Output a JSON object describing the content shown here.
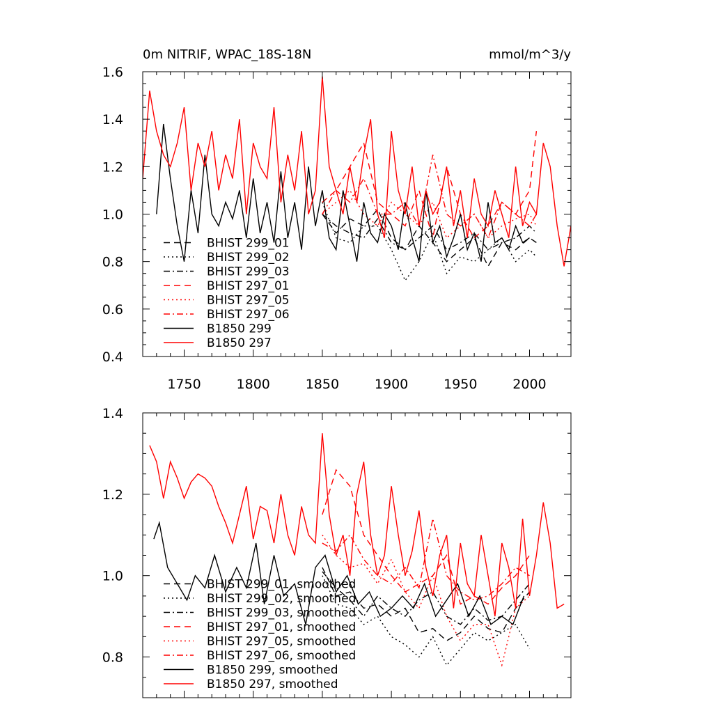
{
  "chart_data": [
    {
      "type": "line",
      "title": "0m NITRIF, WPAC_18S-18N",
      "units": "mmol/m^3/y",
      "xlim": [
        1720,
        2030
      ],
      "ylim": [
        0.4,
        1.6
      ],
      "xticks": [
        1750,
        1800,
        1850,
        1900,
        1950,
        2000
      ],
      "yticks": [
        0.4,
        0.6,
        0.8,
        1.0,
        1.2,
        1.4,
        1.6
      ],
      "ytick_labels": [
        "0.4",
        "0.6",
        "0.8",
        "1.0",
        "1.2",
        "1.4",
        "1.6"
      ],
      "legend_position": "bottom-left",
      "series": [
        {
          "name": "BHIST 299_01",
          "color": "#000000",
          "dash": "dash",
          "x": [
            1850,
            1860,
            1870,
            1880,
            1890,
            1900,
            1910,
            1920,
            1930,
            1940,
            1950,
            1960,
            1970,
            1980,
            1990,
            2000,
            2005
          ],
          "y": [
            1.0,
            0.92,
            0.98,
            0.95,
            1.02,
            0.9,
            0.85,
            0.95,
            0.88,
            0.8,
            0.85,
            0.9,
            0.78,
            0.88,
            0.85,
            0.9,
            0.88
          ]
        },
        {
          "name": "BHIST 299_02",
          "color": "#000000",
          "dash": "dot",
          "x": [
            1850,
            1860,
            1870,
            1880,
            1890,
            1900,
            1910,
            1920,
            1930,
            1940,
            1950,
            1960,
            1970,
            1980,
            1990,
            2000,
            2005
          ],
          "y": [
            1.05,
            0.9,
            0.88,
            0.95,
            0.95,
            0.85,
            0.72,
            0.8,
            0.92,
            0.75,
            0.82,
            0.8,
            0.85,
            0.9,
            0.8,
            0.85,
            0.82
          ]
        },
        {
          "name": "BHIST 299_03",
          "color": "#000000",
          "dash": "dashdot",
          "x": [
            1850,
            1860,
            1870,
            1880,
            1890,
            1900,
            1910,
            1920,
            1930,
            1940,
            1950,
            1960,
            1970,
            1980,
            1990,
            2000,
            2005
          ],
          "y": [
            1.0,
            0.95,
            0.92,
            0.9,
            0.98,
            0.88,
            0.85,
            0.9,
            0.95,
            0.85,
            0.88,
            0.92,
            0.85,
            0.88,
            0.9,
            0.95,
            0.92
          ]
        },
        {
          "name": "BHIST 297_01",
          "color": "#ff0000",
          "dash": "dash",
          "x": [
            1850,
            1860,
            1870,
            1880,
            1890,
            1900,
            1910,
            1920,
            1930,
            1940,
            1950,
            1960,
            1970,
            1980,
            1990,
            2000,
            2005
          ],
          "y": [
            1.05,
            1.1,
            1.2,
            1.3,
            1.05,
            1.0,
            0.95,
            1.1,
            0.9,
            1.2,
            1.0,
            0.9,
            0.95,
            1.05,
            1.0,
            1.1,
            1.35
          ]
        },
        {
          "name": "BHIST 297_05",
          "color": "#ff0000",
          "dash": "dot",
          "x": [
            1850,
            1860,
            1870,
            1880,
            1890,
            1900,
            1910,
            1920,
            1930,
            1940,
            1950,
            1960,
            1970,
            1980,
            1990,
            2000,
            2005
          ],
          "y": [
            1.0,
            1.05,
            1.1,
            1.0,
            0.95,
            1.05,
            1.0,
            0.95,
            1.05,
            0.9,
            0.95,
            1.0,
            0.9,
            0.95,
            0.98,
            1.0,
            0.95
          ]
        },
        {
          "name": "BHIST 297_06",
          "color": "#ff0000",
          "dash": "dashdot",
          "x": [
            1850,
            1860,
            1870,
            1880,
            1890,
            1900,
            1910,
            1920,
            1930,
            1940,
            1950,
            1960,
            1970,
            1980,
            1990,
            2000,
            2005
          ],
          "y": [
            1.0,
            1.1,
            1.05,
            1.15,
            1.0,
            1.0,
            1.05,
            0.95,
            1.25,
            1.0,
            0.95,
            1.0,
            0.9,
            1.05,
            1.0,
            0.95,
            1.0
          ]
        },
        {
          "name": "B1850 299",
          "color": "#000000",
          "dash": "solid",
          "x": [
            1730,
            1735,
            1740,
            1745,
            1750,
            1755,
            1760,
            1765,
            1770,
            1775,
            1780,
            1785,
            1790,
            1795,
            1800,
            1805,
            1810,
            1815,
            1820,
            1825,
            1830,
            1835,
            1840,
            1845,
            1850,
            1855,
            1860,
            1865,
            1870,
            1875,
            1880,
            1885,
            1890,
            1895,
            1900,
            1905,
            1910,
            1915,
            1920,
            1925,
            1930,
            1935,
            1940,
            1945,
            1950,
            1955,
            1960,
            1965,
            1970,
            1975,
            1980,
            1985,
            1990,
            1995,
            2000
          ],
          "y": [
            1.0,
            1.38,
            1.15,
            0.95,
            0.8,
            1.1,
            0.92,
            1.25,
            1.0,
            0.95,
            1.05,
            0.98,
            1.1,
            0.9,
            1.15,
            0.92,
            1.05,
            0.88,
            1.18,
            0.9,
            1.05,
            0.85,
            1.2,
            0.95,
            1.1,
            0.9,
            0.85,
            1.1,
            0.95,
            0.8,
            1.05,
            0.92,
            0.88,
            1.0,
            0.95,
            0.85,
            1.05,
            0.9,
            0.8,
            1.1,
            0.88,
            0.95,
            0.82,
            0.9,
            1.0,
            0.85,
            0.92,
            0.8,
            1.05,
            0.88,
            0.9,
            0.85,
            0.95,
            0.88,
            0.9
          ]
        },
        {
          "name": "B1850 297",
          "color": "#ff0000",
          "dash": "solid",
          "x": [
            1720,
            1725,
            1730,
            1735,
            1740,
            1745,
            1750,
            1755,
            1760,
            1765,
            1770,
            1775,
            1780,
            1785,
            1790,
            1795,
            1800,
            1805,
            1810,
            1815,
            1820,
            1825,
            1830,
            1835,
            1840,
            1845,
            1850,
            1855,
            1860,
            1865,
            1870,
            1875,
            1880,
            1885,
            1890,
            1895,
            1900,
            1905,
            1910,
            1915,
            1920,
            1925,
            1930,
            1935,
            1940,
            1945,
            1950,
            1955,
            1960,
            1965,
            1970,
            1975,
            1980,
            1985,
            1990,
            1995,
            2000,
            2005,
            2010,
            2015,
            2020,
            2025,
            2030
          ],
          "y": [
            1.15,
            1.52,
            1.35,
            1.25,
            1.2,
            1.3,
            1.45,
            1.1,
            1.3,
            1.2,
            1.35,
            1.1,
            1.25,
            1.15,
            1.4,
            1.0,
            1.3,
            1.2,
            1.15,
            1.45,
            1.05,
            1.25,
            1.1,
            1.35,
            1.0,
            1.1,
            1.58,
            1.2,
            1.1,
            1.0,
            1.2,
            1.05,
            1.25,
            1.4,
            1.0,
            0.9,
            1.35,
            1.1,
            1.0,
            1.2,
            0.95,
            1.1,
            1.0,
            1.05,
            1.2,
            0.95,
            1.1,
            0.9,
            1.15,
            1.0,
            0.95,
            1.1,
            1.0,
            0.9,
            1.2,
            0.95,
            1.05,
            1.0,
            1.3,
            1.2,
            0.95,
            0.78,
            0.95
          ]
        }
      ]
    },
    {
      "type": "line",
      "xlim": [
        1720,
        2030
      ],
      "ylim": [
        0.7,
        1.4
      ],
      "xticks": [
        1750,
        1800,
        1850,
        1900,
        1950,
        2000
      ],
      "yticks": [
        0.8,
        1.0,
        1.2,
        1.4
      ],
      "ytick_labels": [
        "0.8",
        "1.0",
        "1.2",
        "1.4"
      ],
      "legend_position": "bottom-left",
      "series": [
        {
          "name": "BHIST 299_01, smoothed",
          "color": "#000000",
          "dash": "dash",
          "x": [
            1850,
            1860,
            1870,
            1880,
            1890,
            1900,
            1910,
            1920,
            1930,
            1940,
            1950,
            1960,
            1970,
            1980,
            1990,
            2000
          ],
          "y": [
            1.02,
            0.95,
            0.96,
            0.92,
            0.93,
            0.9,
            0.92,
            0.86,
            0.87,
            0.84,
            0.86,
            0.9,
            0.87,
            0.86,
            0.92,
            0.96
          ]
        },
        {
          "name": "BHIST 299_02, smoothed",
          "color": "#000000",
          "dash": "dot",
          "x": [
            1850,
            1860,
            1870,
            1880,
            1890,
            1900,
            1910,
            1920,
            1930,
            1940,
            1950,
            1960,
            1970,
            1980,
            1990,
            2000
          ],
          "y": [
            1.0,
            0.93,
            0.92,
            0.88,
            0.9,
            0.85,
            0.83,
            0.8,
            0.85,
            0.78,
            0.82,
            0.86,
            0.84,
            0.86,
            0.88,
            0.82
          ]
        },
        {
          "name": "BHIST 299_03, smoothed",
          "color": "#000000",
          "dash": "dashdot",
          "x": [
            1850,
            1860,
            1870,
            1880,
            1890,
            1900,
            1910,
            1920,
            1930,
            1940,
            1950,
            1960,
            1970,
            1980,
            1990,
            2000
          ],
          "y": [
            1.01,
            0.97,
            0.94,
            0.9,
            0.95,
            0.92,
            0.9,
            0.94,
            0.96,
            0.9,
            0.88,
            0.92,
            0.89,
            0.9,
            0.94,
            0.98
          ]
        },
        {
          "name": "BHIST 297_01, smoothed",
          "color": "#ff0000",
          "dash": "dash",
          "x": [
            1850,
            1860,
            1870,
            1880,
            1890,
            1900,
            1910,
            1920,
            1930,
            1940,
            1950,
            1960,
            1970,
            1980,
            1990,
            2000
          ],
          "y": [
            1.15,
            1.26,
            1.22,
            1.1,
            1.05,
            1.0,
            0.96,
            0.98,
            1.0,
            1.05,
            0.93,
            0.95,
            0.93,
            0.97,
            1.0,
            1.05
          ]
        },
        {
          "name": "BHIST 297_05, smoothed",
          "color": "#ff0000",
          "dash": "dot",
          "x": [
            1850,
            1860,
            1870,
            1880,
            1890,
            1900,
            1910,
            1920,
            1930,
            1940,
            1950,
            1960,
            1970,
            1980,
            1990,
            2000
          ],
          "y": [
            1.1,
            1.05,
            1.02,
            1.03,
            0.98,
            1.04,
            0.96,
            0.92,
            1.0,
            0.9,
            0.84,
            0.88,
            0.88,
            0.78,
            0.92,
            0.95
          ]
        },
        {
          "name": "BHIST 297_06, smoothed",
          "color": "#ff0000",
          "dash": "dashdot",
          "x": [
            1850,
            1860,
            1870,
            1880,
            1890,
            1900,
            1910,
            1920,
            1930,
            1940,
            1950,
            1960,
            1970,
            1980,
            1990,
            2000
          ],
          "y": [
            1.08,
            1.06,
            1.1,
            1.04,
            1.0,
            0.98,
            1.02,
            0.97,
            1.14,
            1.0,
            0.96,
            0.94,
            0.95,
            0.98,
            1.02,
            1.0
          ]
        },
        {
          "name": "B1850 299, smoothed",
          "color": "#000000",
          "dash": "solid",
          "x": [
            1728,
            1732,
            1738,
            1745,
            1752,
            1758,
            1765,
            1772,
            1780,
            1788,
            1795,
            1802,
            1808,
            1815,
            1822,
            1830,
            1838,
            1845,
            1852,
            1860,
            1868,
            1876,
            1884,
            1892,
            1900,
            1908,
            1916,
            1924,
            1932,
            1940,
            1948,
            1956,
            1964,
            1972,
            1980,
            1988,
            1996
          ],
          "y": [
            1.09,
            1.13,
            1.02,
            0.98,
            0.94,
            1.0,
            0.97,
            1.05,
            0.96,
            1.02,
            0.97,
            1.08,
            0.93,
            1.05,
            0.95,
            0.98,
            0.88,
            1.02,
            1.05,
            0.96,
            1.0,
            0.93,
            0.96,
            0.9,
            0.92,
            0.95,
            0.92,
            0.98,
            0.9,
            0.94,
            0.98,
            0.9,
            0.95,
            0.88,
            0.9,
            0.88,
            0.95
          ]
        },
        {
          "name": "B1850 297, smoothed",
          "color": "#ff0000",
          "dash": "solid",
          "x": [
            1725,
            1730,
            1735,
            1740,
            1745,
            1750,
            1755,
            1760,
            1765,
            1770,
            1775,
            1780,
            1785,
            1790,
            1795,
            1800,
            1805,
            1810,
            1815,
            1820,
            1825,
            1830,
            1835,
            1840,
            1845,
            1850,
            1855,
            1860,
            1865,
            1870,
            1875,
            1880,
            1885,
            1890,
            1895,
            1900,
            1905,
            1910,
            1915,
            1920,
            1925,
            1930,
            1935,
            1940,
            1945,
            1950,
            1955,
            1960,
            1965,
            1970,
            1975,
            1980,
            1985,
            1990,
            1995,
            2000,
            2005,
            2010,
            2015,
            2020,
            2025
          ],
          "y": [
            1.32,
            1.28,
            1.19,
            1.28,
            1.24,
            1.19,
            1.23,
            1.25,
            1.24,
            1.22,
            1.17,
            1.13,
            1.08,
            1.15,
            1.22,
            1.09,
            1.17,
            1.16,
            1.08,
            1.2,
            1.1,
            1.05,
            1.17,
            1.1,
            1.08,
            1.35,
            1.15,
            1.05,
            1.1,
            1.0,
            1.2,
            1.28,
            1.1,
            1.0,
            1.05,
            1.22,
            1.1,
            1.0,
            1.06,
            1.16,
            1.02,
            0.95,
            1.05,
            1.1,
            0.92,
            1.08,
            0.98,
            0.95,
            1.1,
            1.0,
            0.9,
            1.08,
            1.02,
            0.92,
            1.14,
            0.95,
            1.05,
            1.18,
            1.08,
            0.92,
            0.93
          ]
        }
      ]
    }
  ]
}
